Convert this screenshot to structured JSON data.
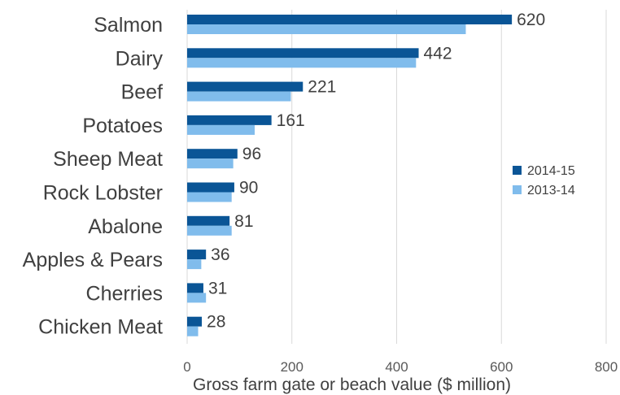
{
  "chart_data": {
    "type": "bar",
    "orientation": "horizontal",
    "categories": [
      "Salmon",
      "Dairy",
      "Beef",
      "Potatoes",
      "Sheep Meat",
      "Rock Lobster",
      "Abalone",
      "Apples & Pears",
      "Cherries",
      "Chicken Meat"
    ],
    "series": [
      {
        "name": "2014-15",
        "values": [
          620,
          442,
          221,
          161,
          96,
          90,
          81,
          36,
          31,
          28
        ],
        "color": "#0a5596",
        "data_labels": true
      },
      {
        "name": "2013-14",
        "values": [
          532,
          437,
          198,
          129,
          88,
          85,
          85,
          27,
          36,
          21
        ],
        "color": "#80bcec",
        "data_labels": false
      }
    ],
    "data_labels": [
      "620",
      "442",
      "221",
      "161",
      "96",
      "90",
      "81",
      "36",
      "31",
      "28"
    ],
    "xlabel": "Gross farm gate or beach value  ($ million)",
    "xlim": [
      0,
      800
    ],
    "xticks": [
      "0",
      "200",
      "400",
      "600",
      "800"
    ],
    "grid": "vertical",
    "legend_position": "right"
  }
}
